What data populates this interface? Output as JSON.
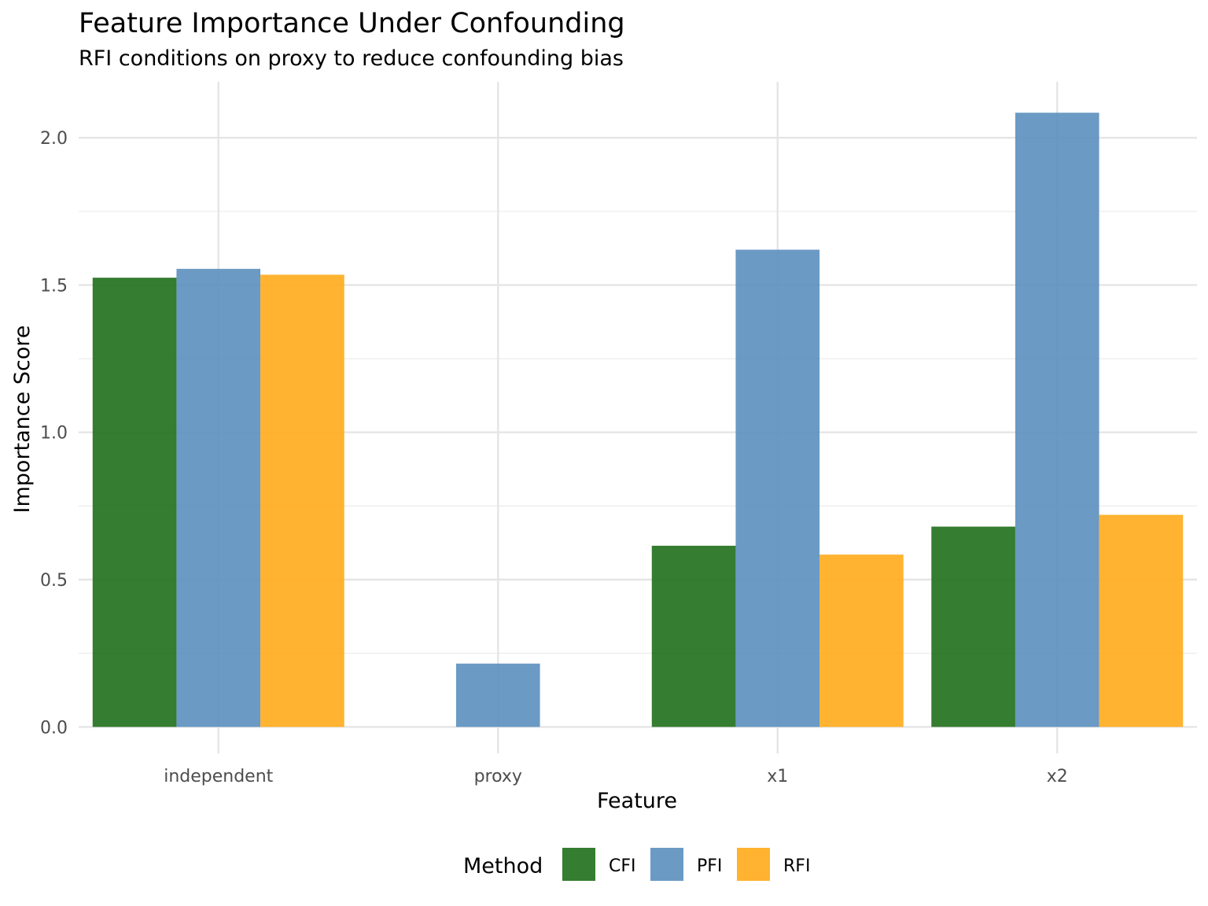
{
  "chart_data": {
    "type": "bar",
    "title": "Feature Importance Under Confounding",
    "subtitle": "RFI conditions on proxy to reduce confounding bias",
    "xlabel": "Feature",
    "ylabel": "Importance Score",
    "categories": [
      "independent",
      "proxy",
      "x1",
      "x2"
    ],
    "series": [
      {
        "name": "CFI",
        "color": "#1f6f1a",
        "values": [
          1.525,
          0.0,
          0.615,
          0.68
        ]
      },
      {
        "name": "PFI",
        "color": "#5b8fbe",
        "values": [
          1.555,
          0.215,
          1.62,
          2.085
        ]
      },
      {
        "name": "RFI",
        "color": "#ffab19",
        "values": [
          1.535,
          0.0,
          0.585,
          0.72
        ]
      }
    ],
    "ylim": [
      -0.09,
      2.19
    ],
    "y_ticks": [
      0.0,
      0.5,
      1.0,
      1.5,
      2.0
    ],
    "y_tick_labels": [
      "0.0",
      "0.5",
      "1.0",
      "1.5",
      "2.0"
    ],
    "grid": true,
    "legend": {
      "title": "Method",
      "position": "bottom"
    }
  }
}
